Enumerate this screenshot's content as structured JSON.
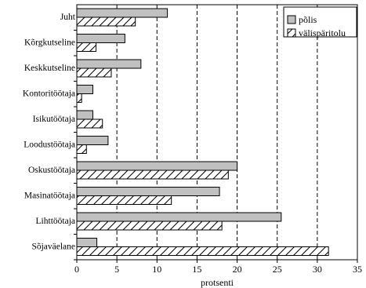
{
  "chart_data": {
    "type": "bar",
    "orientation": "horizontal",
    "categories": [
      "Juht",
      "Kõrgkutseline",
      "Keskkutseline",
      "Kontoritöötaja",
      "Isikutöötaja",
      "Loodustöötaja",
      "Oskustöötaja",
      "Masinatöötaja",
      "Lihttöötaja",
      "Sõjaväelane"
    ],
    "series": [
      {
        "name": "põlis",
        "values": [
          11.3,
          6.0,
          8.0,
          2.0,
          2.0,
          3.9,
          20.0,
          17.8,
          25.5,
          2.5
        ],
        "color": "#c0c0c0",
        "pattern": "solid"
      },
      {
        "name": "välispäritolu",
        "values": [
          7.3,
          2.4,
          4.3,
          0.6,
          3.2,
          1.2,
          18.9,
          11.8,
          18.1,
          31.4
        ],
        "color": "#ffffff",
        "pattern": "hatch"
      }
    ],
    "xlabel": "protsenti",
    "xlim": [
      0,
      35
    ],
    "xticks": [
      0,
      5,
      10,
      15,
      20,
      25,
      30,
      35
    ],
    "grid": "vertical-dashed",
    "legend_position": "top-right"
  }
}
